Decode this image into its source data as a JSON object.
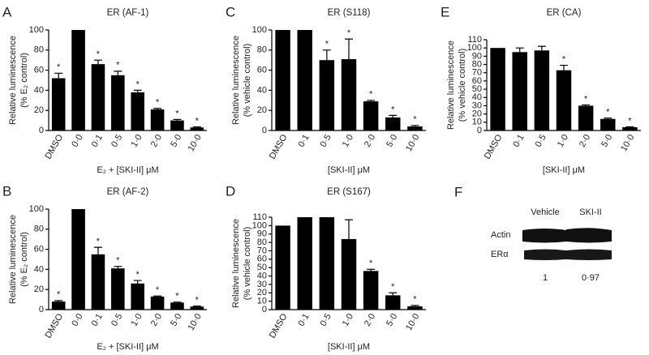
{
  "chart_data": [
    {
      "type": "bar",
      "panel": "A",
      "title": "ER (AF-1)",
      "ylabel": [
        "Relative luminescence",
        "(% E₂ control)"
      ],
      "xlabel": "E₂ + [SKI-II] μM",
      "categories": [
        "DMSO",
        "0·0",
        "0·1",
        "0·5",
        "1·0",
        "2·0",
        "5·0",
        "10·0"
      ],
      "values": [
        52,
        100,
        66,
        55,
        38,
        21,
        10,
        3
      ],
      "errors": [
        5,
        0,
        4,
        4,
        2,
        1,
        1,
        0.5
      ],
      "annotations": [
        "*",
        null,
        "*",
        "*",
        "*",
        "*",
        "*",
        "*"
      ],
      "color": "#000000",
      "ylim": [
        0,
        100
      ],
      "yticks": [
        0,
        20,
        40,
        60,
        80,
        100
      ]
    },
    {
      "type": "bar",
      "panel": "B",
      "title": "ER (AF-2)",
      "ylabel": [
        "Relative luminescence",
        "(% E₂ control)"
      ],
      "xlabel": "E₂ + [SKI-II] μM",
      "categories": [
        "DMSO",
        "0·0",
        "0·1",
        "0·5",
        "1·0",
        "2·0",
        "5·0",
        "10·0"
      ],
      "values": [
        8,
        100,
        55,
        41,
        26,
        13,
        7,
        3
      ],
      "errors": [
        1,
        0,
        7,
        2,
        3,
        0.5,
        0.5,
        0.5
      ],
      "annotations": [
        "*",
        null,
        "*",
        "*",
        "*",
        "*",
        "*",
        "*"
      ],
      "color": "#000000",
      "ylim": [
        0,
        100
      ],
      "yticks": [
        0,
        20,
        40,
        60,
        80,
        100
      ]
    },
    {
      "type": "bar",
      "panel": "C",
      "title": "ER (S118)",
      "ylabel": [
        "Relative luminescence",
        "(% vehicle control)"
      ],
      "xlabel": "[SKI-II] μM",
      "categories": [
        "DMSO",
        "0·1",
        "0·5",
        "1·0",
        "2·0",
        "5·0",
        "10·0"
      ],
      "values": [
        100,
        100,
        70,
        71,
        29,
        13,
        4
      ],
      "errors": [
        0,
        0,
        10,
        20,
        1,
        2,
        1
      ],
      "annotations": [
        null,
        null,
        "*",
        "*",
        "*",
        "*",
        "*"
      ],
      "color": "#000000",
      "ylim": [
        0,
        100
      ],
      "yticks": [
        0,
        20,
        40,
        60,
        80,
        100
      ]
    },
    {
      "type": "bar",
      "panel": "D",
      "title": "ER (S167)",
      "ylabel": [
        "Relative luminescence",
        "(% vehicle control)"
      ],
      "xlabel": "[SKI-II] μM",
      "categories": [
        "DMSO",
        "0·1",
        "0·5",
        "1·0",
        "2·0",
        "5·0",
        "10·0"
      ],
      "values": [
        100,
        110,
        110,
        84,
        46,
        17,
        4
      ],
      "errors": [
        0,
        0,
        0,
        23,
        2,
        3,
        1
      ],
      "annotations": [
        null,
        null,
        null,
        null,
        "*",
        "*",
        "*"
      ],
      "color": "#000000",
      "ylim": [
        0,
        110
      ],
      "yticks": [
        0,
        10,
        20,
        30,
        40,
        50,
        60,
        70,
        80,
        90,
        100,
        110
      ]
    },
    {
      "type": "bar",
      "panel": "E",
      "title": "ER (CA)",
      "ylabel": [
        "Relative luminescence",
        "(% vehicle control)"
      ],
      "xlabel": "[SKI-II] μM",
      "categories": [
        "DMSO",
        "0·1",
        "0·5",
        "1·0",
        "2·0",
        "5·0",
        "10·0"
      ],
      "values": [
        100,
        95,
        97,
        73,
        30,
        14,
        4
      ],
      "errors": [
        0,
        5,
        5,
        6,
        1,
        1,
        0.5
      ],
      "annotations": [
        null,
        null,
        null,
        "*",
        "*",
        "*",
        "*"
      ],
      "color": "#000000",
      "ylim": [
        0,
        110
      ],
      "yticks": [
        0,
        10,
        20,
        30,
        40,
        50,
        60,
        70,
        80,
        90,
        100,
        110
      ]
    }
  ],
  "blot": {
    "panel": "F",
    "columns": [
      "Vehicle",
      "SKI-II"
    ],
    "rows": [
      "Actin",
      "ERα"
    ],
    "quantification": [
      "1",
      "0·97"
    ]
  }
}
